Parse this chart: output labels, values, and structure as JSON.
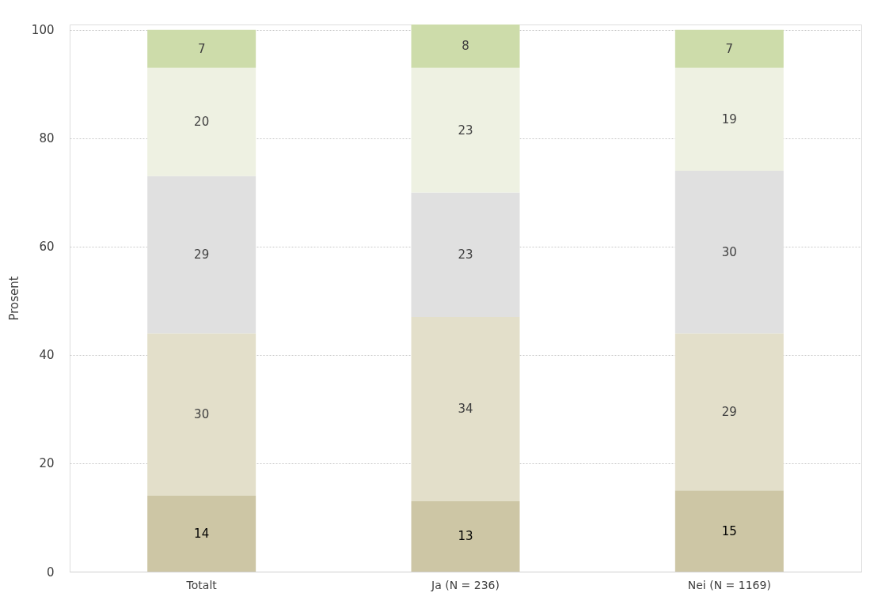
{
  "chart_data": {
    "type": "bar",
    "stacked": true,
    "ylabel": "Prosent",
    "categories": [
      "Totalt",
      "Ja (N = 236)",
      "Nei (N = 1169)"
    ],
    "ylim": [
      0,
      101
    ],
    "yticks": [
      0,
      20,
      40,
      60,
      80,
      100
    ],
    "grid": "y",
    "data_labels": true,
    "series": [
      {
        "color": "#cdc6a5",
        "values": [
          14,
          13,
          15
        ]
      },
      {
        "color": "#e3dfca",
        "values": [
          30,
          34,
          29
        ]
      },
      {
        "color": "#e0e0e0",
        "values": [
          29,
          23,
          30
        ]
      },
      {
        "color": "#eef1e2",
        "values": [
          20,
          23,
          19
        ]
      },
      {
        "color": "#cddcaa",
        "values": [
          7,
          8,
          7
        ]
      }
    ]
  }
}
